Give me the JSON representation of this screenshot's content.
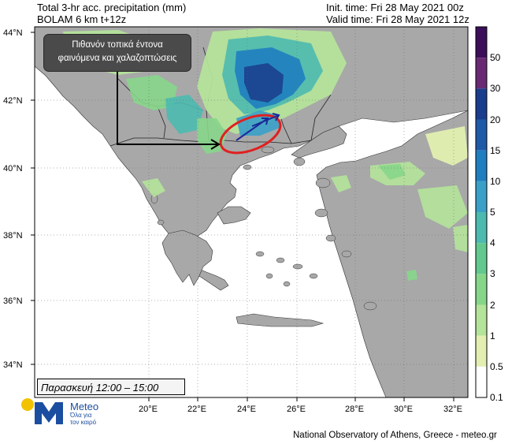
{
  "header": {
    "title_line1": "Total 3-hr acc. precipitation (mm)",
    "title_line2": "BOLAM 6 km t+12z",
    "init_time": "Init. time: Fri 28 May 2021 00z",
    "valid_time": "Valid time: Fri 28 May 2021 12z"
  },
  "map": {
    "lat_labels": [
      "44°N",
      "42°N",
      "40°N",
      "38°N",
      "36°N",
      "34°N"
    ],
    "lon_labels": [
      "20°E",
      "22°E",
      "24°E",
      "26°E",
      "28°E",
      "30°E",
      "32°E"
    ],
    "callout_line1": "Πιθανόν τοπικά έντονα",
    "callout_line2": "φαινόμενα και χαλαζοπτώσεις",
    "day_box": "Παρασκευή 12:00 – 15:00"
  },
  "colorbar": {
    "labels": [
      "50",
      "30",
      "20",
      "15",
      "10",
      "5",
      "4",
      "3",
      "2",
      "1",
      "0.5",
      "0.1"
    ],
    "colors": [
      "#3b0f5a",
      "#6a2a73",
      "#1a3c8c",
      "#1f5aa8",
      "#1f7ec0",
      "#3aa0c8",
      "#4dbab0",
      "#62c88e",
      "#86d68a",
      "#b4e39a",
      "#e2efb0",
      "#ffffff"
    ]
  },
  "logo": {
    "name": "Meteo",
    "tagline1": "Όλα για",
    "tagline2": "τον καιρό"
  },
  "footer": "National Observatory of Athens, Greece - meteo.gr"
}
